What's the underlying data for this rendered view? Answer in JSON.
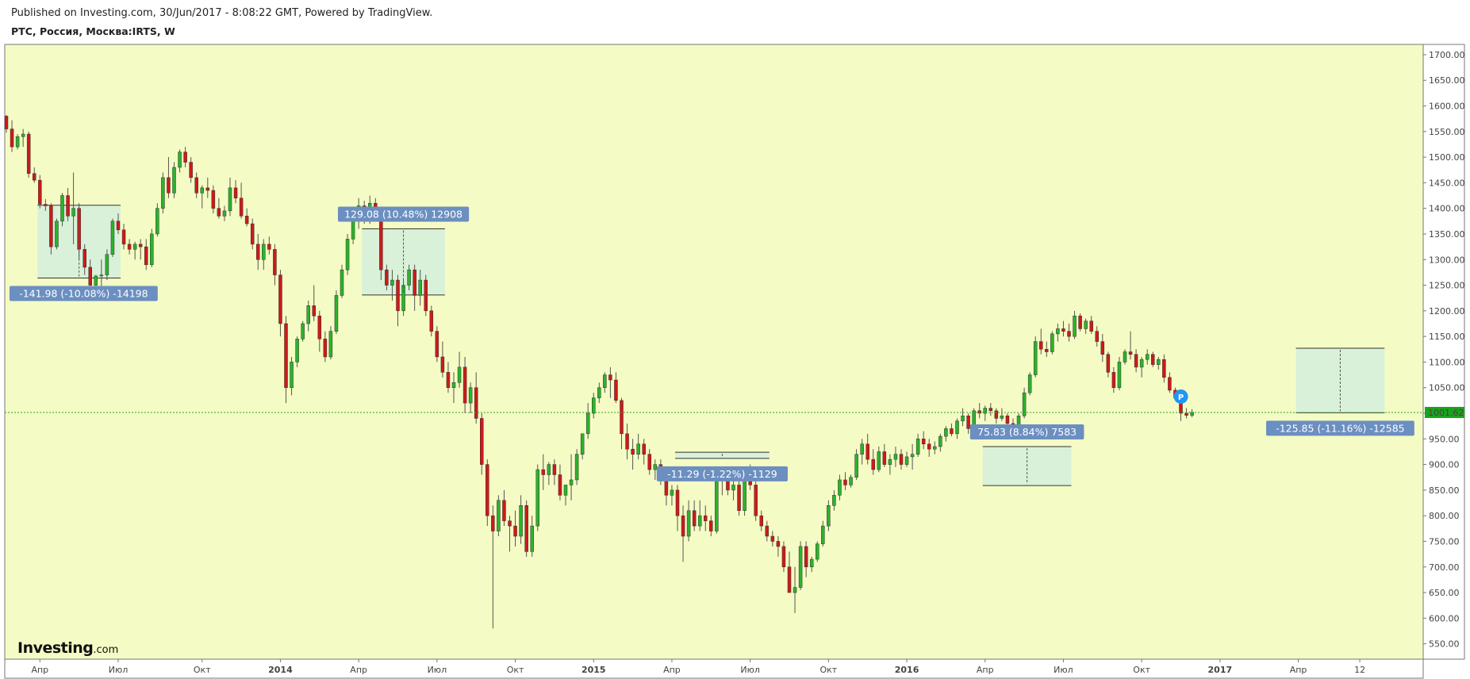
{
  "header": {
    "published": "Published on Investing.com, 30/Jun/2017 - 8:08:22 GMT, Powered by TradingView.",
    "symbol": "РТС, Россия, Москва:IRTS, W"
  },
  "logo": {
    "main": "Investing",
    "suffix": ".com"
  },
  "colors": {
    "background": "#f5fbc4",
    "up": "#2bb32b",
    "down": "#cc1a1a",
    "wick": "#555555",
    "measure_fill": "#d4eedd",
    "label_bg": "#6b8fc0",
    "last_price_bg": "#1aa31a",
    "last_price_line": "#22aa22",
    "badge": "#2196f3"
  },
  "last_price": {
    "value": 1001.62,
    "label": "1001.62"
  },
  "badge_label": "P",
  "measurements": [
    {
      "t1": 6,
      "t2": 20,
      "p_top": 1406,
      "p_bottom": 1264,
      "label": "-141.98 (-10.08%) -14198"
    },
    {
      "t1": 64,
      "t2": 78,
      "p_top": 1360,
      "p_bottom": 1231,
      "label": "129.08 (10.48%) 12908"
    },
    {
      "t1": 120,
      "t2": 136,
      "p_top": 924,
      "p_bottom": 912,
      "label": "-11.29 (-1.22%) -1129"
    },
    {
      "t1": 175,
      "t2": 190,
      "p_top": 935,
      "p_bottom": 859,
      "label": "75.83 (8.84%) 7583"
    },
    {
      "t1": 231,
      "t2": 246,
      "p_top": 1127,
      "p_bottom": 1001,
      "label": "-125.85 (-11.16%) -12585"
    }
  ],
  "chart_data": {
    "type": "candlestick",
    "title": "РТС, Россия, Москва:IRTS, W",
    "interval": "W",
    "start_date": "2013-01-14",
    "ylim": [
      520,
      1720
    ],
    "y_ticks": [
      "1700.00",
      "1650.00",
      "1600.00",
      "1550.00",
      "1500.00",
      "1450.00",
      "1400.00",
      "1350.00",
      "1300.00",
      "1250.00",
      "1200.00",
      "1150.00",
      "1100.00",
      "1050.00",
      "1000.00",
      "950.00",
      "900.00",
      "850.00",
      "800.00",
      "750.00",
      "700.00",
      "650.00",
      "600.00",
      "550.00"
    ],
    "x_ticks": [
      {
        "label": "Апр",
        "t": 6
      },
      {
        "label": "Июл",
        "t": 20
      },
      {
        "label": "Окт",
        "t": 35
      },
      {
        "label": "2014",
        "t": 49
      },
      {
        "label": "Апр",
        "t": 63
      },
      {
        "label": "Июл",
        "t": 77
      },
      {
        "label": "Окт",
        "t": 91
      },
      {
        "label": "2015",
        "t": 105
      },
      {
        "label": "Апр",
        "t": 119
      },
      {
        "label": "Июл",
        "t": 133
      },
      {
        "label": "Окт",
        "t": 147
      },
      {
        "label": "2016",
        "t": 161
      },
      {
        "label": "Апр",
        "t": 175
      },
      {
        "label": "Июл",
        "t": 189
      },
      {
        "label": "Окт",
        "t": 203
      },
      {
        "label": "2017",
        "t": 217
      },
      {
        "label": "Апр",
        "t": 231
      },
      {
        "label": "12",
        "t": 242
      }
    ],
    "ohlc_fields": [
      "open",
      "high",
      "low",
      "close"
    ],
    "ohlc": [
      [
        1580,
        1582,
        1548,
        1555
      ],
      [
        1555,
        1572,
        1510,
        1520
      ],
      [
        1520,
        1545,
        1515,
        1540
      ],
      [
        1540,
        1555,
        1520,
        1545
      ],
      [
        1545,
        1550,
        1460,
        1468
      ],
      [
        1468,
        1480,
        1450,
        1455
      ],
      [
        1455,
        1465,
        1400,
        1408
      ],
      [
        1408,
        1418,
        1395,
        1405
      ],
      [
        1405,
        1410,
        1310,
        1325
      ],
      [
        1325,
        1380,
        1320,
        1375
      ],
      [
        1375,
        1430,
        1365,
        1425
      ],
      [
        1425,
        1440,
        1375,
        1385
      ],
      [
        1385,
        1470,
        1330,
        1400
      ],
      [
        1400,
        1410,
        1300,
        1320
      ],
      [
        1320,
        1330,
        1270,
        1285
      ],
      [
        1285,
        1300,
        1240,
        1250
      ],
      [
        1250,
        1270,
        1240,
        1268
      ],
      [
        1268,
        1300,
        1245,
        1270
      ],
      [
        1270,
        1320,
        1260,
        1310
      ],
      [
        1310,
        1380,
        1305,
        1375
      ],
      [
        1375,
        1390,
        1350,
        1358
      ],
      [
        1358,
        1370,
        1320,
        1330
      ],
      [
        1330,
        1340,
        1310,
        1320
      ],
      [
        1320,
        1335,
        1300,
        1330
      ],
      [
        1330,
        1340,
        1300,
        1325
      ],
      [
        1325,
        1340,
        1280,
        1290
      ],
      [
        1290,
        1360,
        1285,
        1350
      ],
      [
        1350,
        1410,
        1345,
        1400
      ],
      [
        1400,
        1470,
        1390,
        1460
      ],
      [
        1460,
        1500,
        1420,
        1430
      ],
      [
        1430,
        1490,
        1420,
        1480
      ],
      [
        1480,
        1515,
        1470,
        1510
      ],
      [
        1510,
        1520,
        1480,
        1490
      ],
      [
        1490,
        1500,
        1450,
        1460
      ],
      [
        1460,
        1470,
        1420,
        1430
      ],
      [
        1430,
        1445,
        1400,
        1440
      ],
      [
        1440,
        1460,
        1420,
        1435
      ],
      [
        1435,
        1445,
        1390,
        1400
      ],
      [
        1400,
        1420,
        1380,
        1385
      ],
      [
        1385,
        1405,
        1375,
        1395
      ],
      [
        1395,
        1460,
        1385,
        1440
      ],
      [
        1440,
        1455,
        1410,
        1420
      ],
      [
        1420,
        1450,
        1380,
        1385
      ],
      [
        1385,
        1400,
        1365,
        1370
      ],
      [
        1370,
        1380,
        1320,
        1330
      ],
      [
        1330,
        1350,
        1280,
        1300
      ],
      [
        1300,
        1340,
        1280,
        1330
      ],
      [
        1330,
        1345,
        1310,
        1320
      ],
      [
        1320,
        1330,
        1250,
        1270
      ],
      [
        1270,
        1280,
        1150,
        1175
      ],
      [
        1175,
        1190,
        1020,
        1050
      ],
      [
        1050,
        1110,
        1035,
        1100
      ],
      [
        1100,
        1150,
        1090,
        1145
      ],
      [
        1145,
        1180,
        1140,
        1175
      ],
      [
        1175,
        1220,
        1160,
        1210
      ],
      [
        1210,
        1250,
        1180,
        1190
      ],
      [
        1190,
        1200,
        1120,
        1145
      ],
      [
        1145,
        1160,
        1100,
        1110
      ],
      [
        1110,
        1170,
        1105,
        1160
      ],
      [
        1160,
        1240,
        1155,
        1230
      ],
      [
        1230,
        1290,
        1225,
        1280
      ],
      [
        1280,
        1350,
        1270,
        1340
      ],
      [
        1340,
        1390,
        1330,
        1380
      ],
      [
        1380,
        1420,
        1360,
        1405
      ],
      [
        1405,
        1415,
        1370,
        1390
      ],
      [
        1390,
        1425,
        1370,
        1410
      ],
      [
        1410,
        1420,
        1380,
        1390
      ],
      [
        1390,
        1395,
        1260,
        1280
      ],
      [
        1280,
        1290,
        1240,
        1250
      ],
      [
        1250,
        1280,
        1220,
        1260
      ],
      [
        1260,
        1270,
        1170,
        1200
      ],
      [
        1200,
        1260,
        1190,
        1250
      ],
      [
        1250,
        1290,
        1240,
        1280
      ],
      [
        1280,
        1290,
        1200,
        1230
      ],
      [
        1230,
        1280,
        1210,
        1260
      ],
      [
        1260,
        1270,
        1190,
        1200
      ],
      [
        1200,
        1210,
        1150,
        1160
      ],
      [
        1160,
        1170,
        1100,
        1110
      ],
      [
        1110,
        1140,
        1070,
        1080
      ],
      [
        1080,
        1100,
        1040,
        1050
      ],
      [
        1050,
        1080,
        1020,
        1060
      ],
      [
        1060,
        1120,
        1050,
        1090
      ],
      [
        1090,
        1110,
        1000,
        1020
      ],
      [
        1020,
        1060,
        1000,
        1050
      ],
      [
        1050,
        1080,
        980,
        990
      ],
      [
        990,
        1000,
        880,
        900
      ],
      [
        900,
        910,
        780,
        800
      ],
      [
        800,
        820,
        580,
        770
      ],
      [
        770,
        840,
        760,
        830
      ],
      [
        830,
        850,
        780,
        790
      ],
      [
        790,
        800,
        730,
        780
      ],
      [
        780,
        810,
        740,
        760
      ],
      [
        760,
        840,
        745,
        820
      ],
      [
        820,
        830,
        720,
        730
      ],
      [
        730,
        800,
        720,
        780
      ],
      [
        780,
        900,
        770,
        890
      ],
      [
        890,
        920,
        850,
        880
      ],
      [
        880,
        905,
        860,
        900
      ],
      [
        900,
        910,
        860,
        880
      ],
      [
        880,
        900,
        830,
        840
      ],
      [
        840,
        860,
        820,
        860
      ],
      [
        860,
        920,
        830,
        870
      ],
      [
        870,
        930,
        860,
        920
      ],
      [
        920,
        960,
        910,
        960
      ],
      [
        960,
        1020,
        950,
        1000
      ],
      [
        1000,
        1040,
        990,
        1030
      ],
      [
        1030,
        1060,
        1020,
        1050
      ],
      [
        1050,
        1080,
        1040,
        1075
      ],
      [
        1075,
        1090,
        1030,
        1065
      ],
      [
        1065,
        1080,
        1020,
        1025
      ],
      [
        1025,
        1030,
        930,
        960
      ],
      [
        960,
        980,
        910,
        930
      ],
      [
        930,
        950,
        890,
        920
      ],
      [
        920,
        960,
        910,
        940
      ],
      [
        940,
        950,
        900,
        920
      ],
      [
        920,
        930,
        880,
        890
      ],
      [
        890,
        910,
        870,
        900
      ],
      [
        900,
        910,
        860,
        870
      ],
      [
        870,
        880,
        820,
        840
      ],
      [
        840,
        860,
        820,
        850
      ],
      [
        850,
        860,
        770,
        800
      ],
      [
        800,
        820,
        710,
        760
      ],
      [
        760,
        830,
        750,
        810
      ],
      [
        810,
        830,
        770,
        780
      ],
      [
        780,
        830,
        770,
        800
      ],
      [
        800,
        820,
        770,
        790
      ],
      [
        790,
        800,
        760,
        770
      ],
      [
        770,
        890,
        765,
        880
      ],
      [
        880,
        895,
        840,
        870
      ],
      [
        870,
        890,
        840,
        850
      ],
      [
        850,
        870,
        830,
        860
      ],
      [
        860,
        870,
        800,
        810
      ],
      [
        810,
        890,
        800,
        880
      ],
      [
        880,
        900,
        850,
        860
      ],
      [
        860,
        870,
        790,
        800
      ],
      [
        800,
        810,
        770,
        780
      ],
      [
        780,
        790,
        750,
        760
      ],
      [
        760,
        770,
        740,
        750
      ],
      [
        750,
        760,
        720,
        740
      ],
      [
        740,
        750,
        690,
        700
      ],
      [
        700,
        730,
        660,
        650
      ],
      [
        650,
        700,
        610,
        660
      ],
      [
        660,
        750,
        655,
        740
      ],
      [
        740,
        750,
        680,
        700
      ],
      [
        700,
        720,
        690,
        715
      ],
      [
        715,
        750,
        710,
        745
      ],
      [
        745,
        790,
        740,
        780
      ],
      [
        780,
        830,
        770,
        820
      ],
      [
        820,
        850,
        810,
        840
      ],
      [
        840,
        880,
        830,
        870
      ],
      [
        870,
        885,
        850,
        860
      ],
      [
        860,
        880,
        855,
        875
      ],
      [
        875,
        930,
        870,
        920
      ],
      [
        920,
        950,
        900,
        940
      ],
      [
        940,
        960,
        900,
        910
      ],
      [
        910,
        930,
        880,
        890
      ],
      [
        890,
        935,
        885,
        925
      ],
      [
        925,
        940,
        895,
        900
      ],
      [
        900,
        920,
        880,
        910
      ],
      [
        910,
        935,
        895,
        920
      ],
      [
        920,
        930,
        890,
        900
      ],
      [
        900,
        925,
        895,
        915
      ],
      [
        915,
        940,
        890,
        920
      ],
      [
        920,
        960,
        915,
        950
      ],
      [
        950,
        965,
        930,
        940
      ],
      [
        940,
        950,
        915,
        930
      ],
      [
        930,
        945,
        920,
        935
      ],
      [
        935,
        960,
        925,
        955
      ],
      [
        955,
        975,
        945,
        970
      ],
      [
        970,
        980,
        955,
        960
      ],
      [
        960,
        990,
        950,
        985
      ],
      [
        985,
        1010,
        975,
        995
      ],
      [
        995,
        1000,
        960,
        970
      ],
      [
        970,
        1010,
        960,
        1005
      ],
      [
        1005,
        1020,
        990,
        1000
      ],
      [
        1000,
        1015,
        985,
        1010
      ],
      [
        1010,
        1020,
        995,
        1005
      ],
      [
        1005,
        1010,
        980,
        990
      ],
      [
        990,
        1010,
        985,
        995
      ],
      [
        995,
        1000,
        970,
        980
      ],
      [
        980,
        990,
        960,
        970
      ],
      [
        970,
        1000,
        965,
        995
      ],
      [
        995,
        1050,
        990,
        1040
      ],
      [
        1040,
        1080,
        1035,
        1075
      ],
      [
        1075,
        1150,
        1070,
        1140
      ],
      [
        1140,
        1165,
        1115,
        1125
      ],
      [
        1125,
        1140,
        1110,
        1120
      ],
      [
        1120,
        1160,
        1115,
        1155
      ],
      [
        1155,
        1175,
        1140,
        1165
      ],
      [
        1165,
        1180,
        1150,
        1160
      ],
      [
        1160,
        1175,
        1140,
        1150
      ],
      [
        1150,
        1200,
        1145,
        1190
      ],
      [
        1190,
        1195,
        1160,
        1165
      ],
      [
        1165,
        1185,
        1155,
        1180
      ],
      [
        1180,
        1190,
        1155,
        1160
      ],
      [
        1160,
        1170,
        1130,
        1140
      ],
      [
        1140,
        1155,
        1100,
        1115
      ],
      [
        1115,
        1120,
        1070,
        1080
      ],
      [
        1080,
        1090,
        1040,
        1050
      ],
      [
        1050,
        1110,
        1045,
        1100
      ],
      [
        1100,
        1125,
        1095,
        1120
      ],
      [
        1120,
        1160,
        1105,
        1115
      ],
      [
        1115,
        1125,
        1080,
        1090
      ],
      [
        1090,
        1110,
        1070,
        1105
      ],
      [
        1105,
        1125,
        1095,
        1115
      ],
      [
        1115,
        1120,
        1090,
        1095
      ],
      [
        1095,
        1110,
        1085,
        1105
      ],
      [
        1105,
        1115,
        1060,
        1070
      ],
      [
        1070,
        1080,
        1040,
        1045
      ],
      [
        1045,
        1050,
        1025,
        1030
      ],
      [
        1030,
        1035,
        985,
        1000
      ],
      [
        1000,
        1010,
        990,
        996
      ],
      [
        996,
        1008,
        992,
        1002
      ]
    ]
  }
}
